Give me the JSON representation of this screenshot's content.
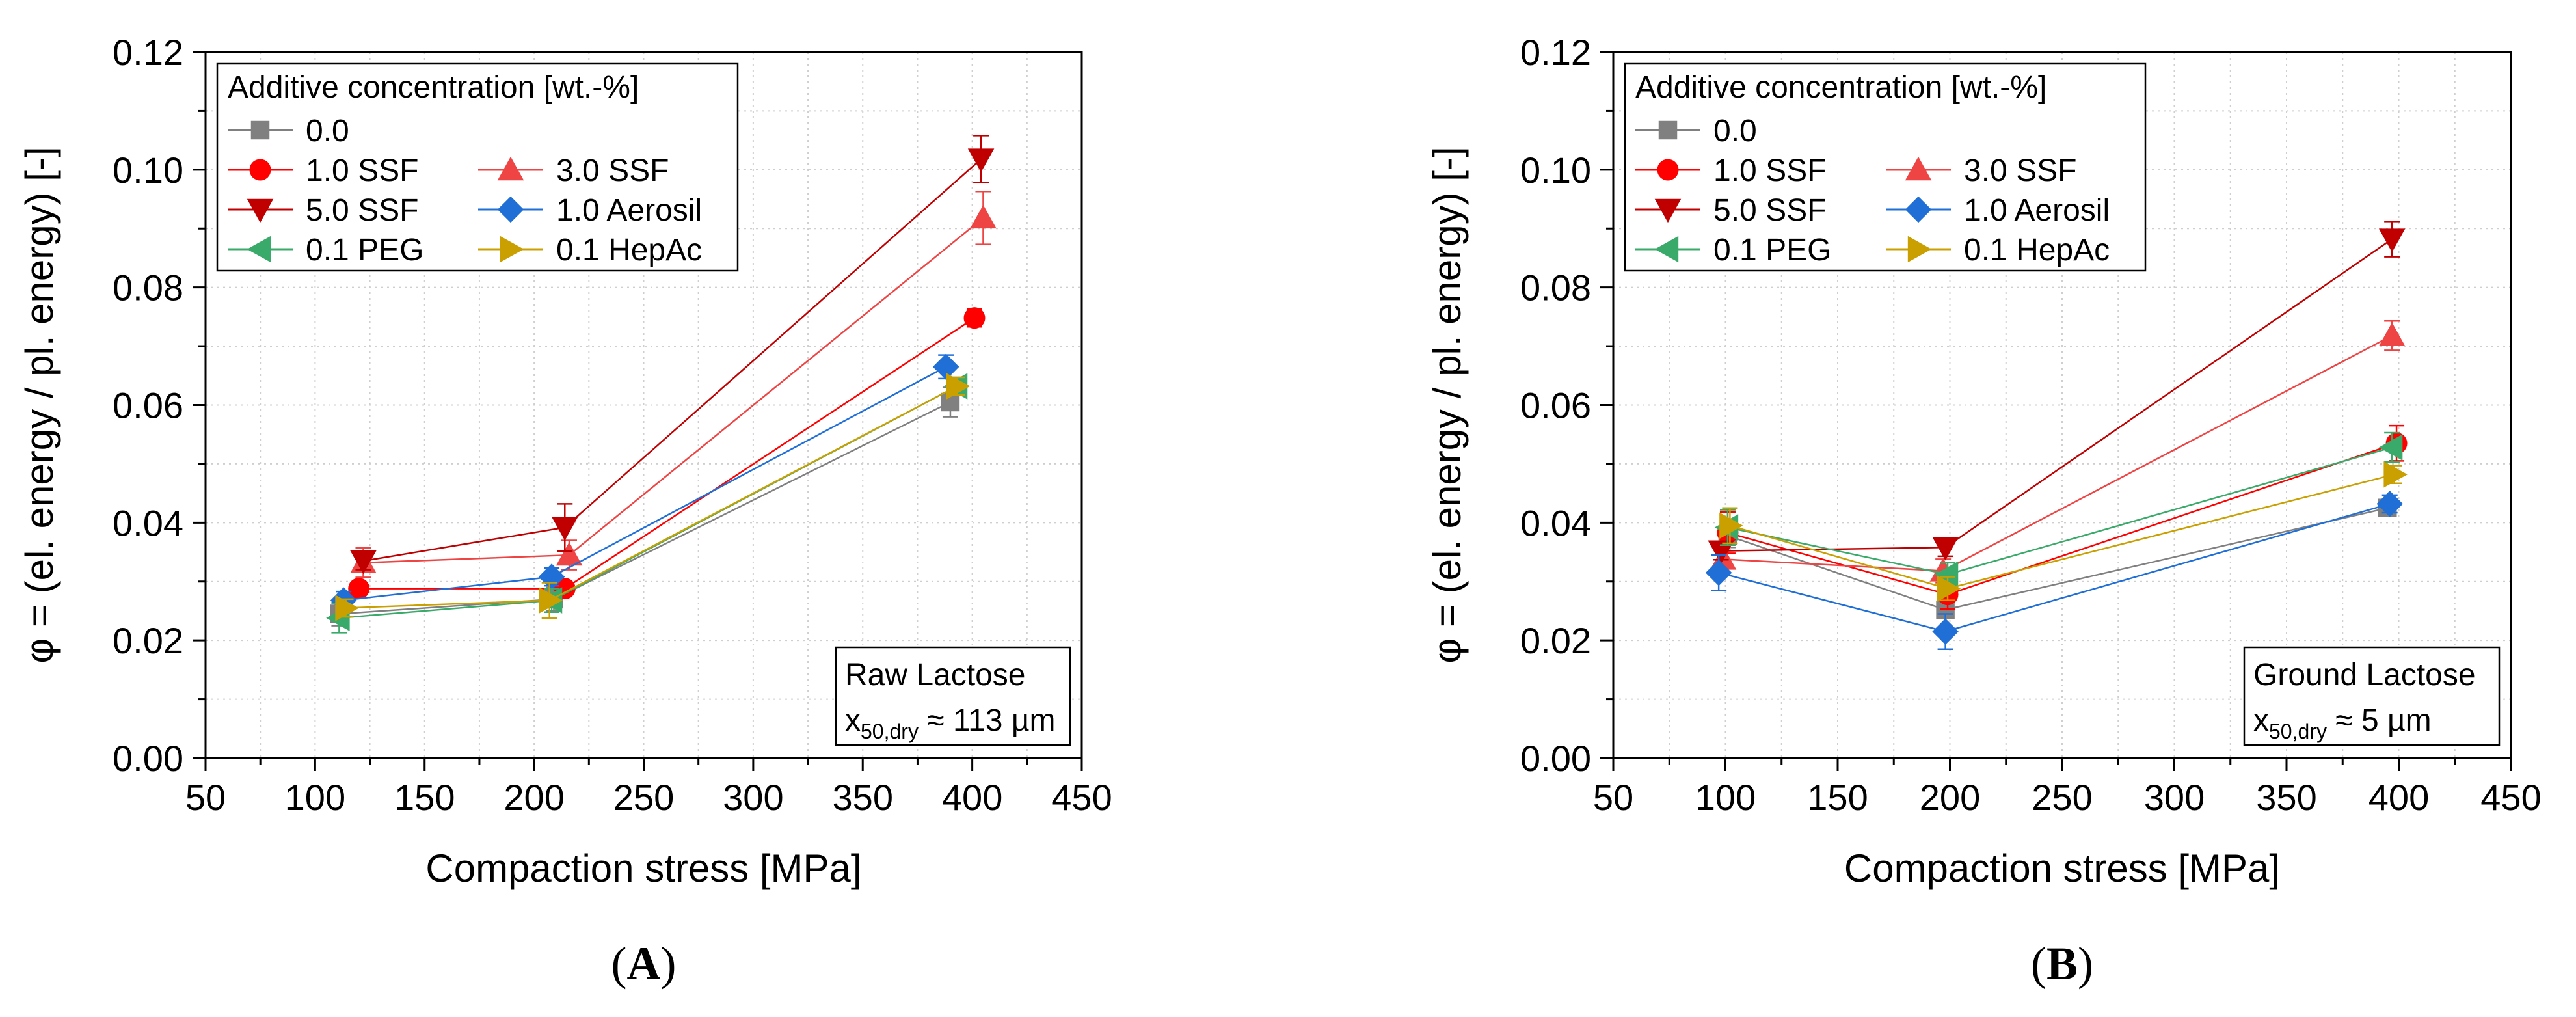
{
  "chart_data": [
    {
      "type": "line",
      "panel_label": "A",
      "xlabel": "Compaction stress [MPa]",
      "ylabel": "φ = (el. energy / pl. energy) [-]",
      "xlim": [
        50,
        450
      ],
      "ylim": [
        0.0,
        0.12
      ],
      "xticks": [
        50,
        100,
        150,
        200,
        250,
        300,
        350,
        400,
        450
      ],
      "yticks": [
        0.0,
        0.02,
        0.04,
        0.06,
        0.08,
        0.1,
        0.12
      ],
      "grid": true,
      "legend_title": "Additive concentration [wt.-%]",
      "legend_position": "top-left",
      "note": {
        "line1": "Raw Lactose",
        "line2_main": "x",
        "line2_sub": "50,dry",
        "line2_rest": " ≈ 113 µm",
        "position": "bottom-right"
      },
      "series": [
        {
          "name": "0.0",
          "color": "#808080",
          "marker": "square",
          "x": [
            111,
            209,
            390
          ],
          "y": [
            0.0245,
            0.027,
            0.0605
          ],
          "err": [
            0.002,
            0.002,
            0.0025
          ]
        },
        {
          "name": "1.0 SSF",
          "color": "#ff0000",
          "marker": "circle",
          "x": [
            120,
            214,
            401
          ],
          "y": [
            0.0288,
            0.0288,
            0.0748
          ],
          "err": [
            0.001,
            0.001,
            0.0015
          ]
        },
        {
          "name": "3.0 SSF",
          "color": "#ee4444",
          "marker": "triangle-up",
          "x": [
            122,
            216,
            405
          ],
          "y": [
            0.0332,
            0.0345,
            0.0918
          ],
          "err": [
            0.0025,
            0.0025,
            0.0045
          ]
        },
        {
          "name": "5.0 SSF",
          "color": "#c00000",
          "marker": "triangle-down",
          "x": [
            122,
            214,
            404
          ],
          "y": [
            0.0335,
            0.0392,
            0.1018
          ],
          "err": [
            0.0015,
            0.004,
            0.004
          ]
        },
        {
          "name": "1.0 Aerosil",
          "color": "#1f6fd6",
          "marker": "diamond",
          "x": [
            113,
            208,
            388
          ],
          "y": [
            0.0268,
            0.0308,
            0.0665
          ],
          "err": [
            0.0015,
            0.0015,
            0.002
          ]
        },
        {
          "name": "0.1 PEG",
          "color": "#3aaa6a",
          "marker": "triangle-left",
          "x": [
            111,
            208,
            393
          ],
          "y": [
            0.0238,
            0.0268,
            0.0632
          ],
          "err": [
            0.0025,
            0.002,
            0.0015
          ]
        },
        {
          "name": "0.1 HepAc",
          "color": "#c9a000",
          "marker": "triangle-right",
          "x": [
            114,
            207,
            393
          ],
          "y": [
            0.0255,
            0.0268,
            0.0632
          ],
          "err": [
            0.0015,
            0.003,
            0.0015
          ]
        }
      ]
    },
    {
      "type": "line",
      "panel_label": "B",
      "xlabel": "Compaction stress [MPa]",
      "ylabel": "φ = (el. energy / pl. energy) [-]",
      "xlim": [
        50,
        450
      ],
      "ylim": [
        0.0,
        0.12
      ],
      "xticks": [
        50,
        100,
        150,
        200,
        250,
        300,
        350,
        400,
        450
      ],
      "yticks": [
        0.0,
        0.02,
        0.04,
        0.06,
        0.08,
        0.1,
        0.12
      ],
      "grid": true,
      "legend_title": "Additive concentration [wt.-%]",
      "legend_position": "top-left",
      "note": {
        "line1": "Ground Lactose",
        "line2_main": "x",
        "line2_sub": "50,dry",
        "line2_rest": " ≈ 5 µm",
        "position": "bottom-right"
      },
      "series": [
        {
          "name": "0.0",
          "color": "#808080",
          "marker": "square",
          "x": [
            101,
            198,
            395
          ],
          "y": [
            0.0378,
            0.0252,
            0.0425
          ],
          "err": [
            0.002,
            0.0015,
            0.001
          ]
        },
        {
          "name": "1.0 SSF",
          "color": "#ff0000",
          "marker": "circle",
          "x": [
            101,
            199,
            399
          ],
          "y": [
            0.0383,
            0.0278,
            0.0535
          ],
          "err": [
            0.0035,
            0.0025,
            0.003
          ]
        },
        {
          "name": "3.0 SSF",
          "color": "#ee4444",
          "marker": "triangle-up",
          "x": [
            99,
            197,
            397
          ],
          "y": [
            0.0338,
            0.0318,
            0.0718
          ],
          "err": [
            0.0015,
            0.002,
            0.0025
          ]
        },
        {
          "name": "5.0 SSF",
          "color": "#c00000",
          "marker": "triangle-down",
          "x": [
            98,
            198,
            397
          ],
          "y": [
            0.0352,
            0.0358,
            0.0882
          ],
          "err": [
            0.0015,
            0.0015,
            0.003
          ]
        },
        {
          "name": "1.0 Aerosil",
          "color": "#1f6fd6",
          "marker": "diamond",
          "x": [
            97,
            198,
            396
          ],
          "y": [
            0.0315,
            0.0215,
            0.0432
          ],
          "err": [
            0.003,
            0.003,
            0.0015
          ]
        },
        {
          "name": "0.1 PEG",
          "color": "#3aaa6a",
          "marker": "triangle-left",
          "x": [
            101,
            199,
            397
          ],
          "y": [
            0.0392,
            0.0312,
            0.0528
          ],
          "err": [
            0.003,
            0.002,
            0.0025
          ]
        },
        {
          "name": "0.1 HepAc",
          "color": "#c9a000",
          "marker": "triangle-right",
          "x": [
            102,
            199,
            398
          ],
          "y": [
            0.0395,
            0.0288,
            0.0482
          ],
          "err": [
            0.003,
            0.002,
            0.0015
          ]
        }
      ]
    }
  ]
}
